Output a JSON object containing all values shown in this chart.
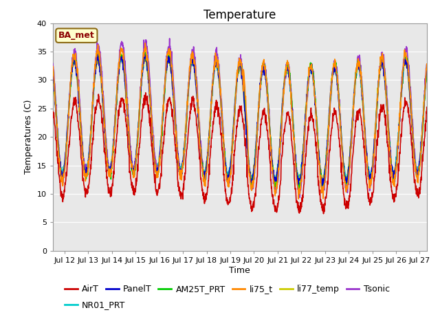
{
  "title": "Temperature",
  "xlabel": "Time",
  "ylabel": "Temperatures (C)",
  "annotation": "BA_met",
  "ylim": [
    0,
    40
  ],
  "xlim_days": [
    11.5,
    27.3
  ],
  "yticks": [
    0,
    5,
    10,
    15,
    20,
    25,
    30,
    35,
    40
  ],
  "xtick_positions": [
    12,
    13,
    14,
    15,
    16,
    17,
    18,
    19,
    20,
    21,
    22,
    23,
    24,
    25,
    26,
    27
  ],
  "xtick_labels": [
    "Jul 12",
    "Jul 13",
    "Jul 14",
    "Jul 15",
    "Jul 16",
    "Jul 17",
    "Jul 18",
    "Jul 19",
    "Jul 20",
    "Jul 21",
    "Jul 22",
    "Jul 23",
    "Jul 24",
    "Jul 25",
    "Jul 26",
    "Jul 27"
  ],
  "first_xtick_label": "Jul",
  "series": {
    "AirT": {
      "color": "#cc0000",
      "lw": 1.2,
      "zorder": 7
    },
    "PanelT": {
      "color": "#0000cc",
      "lw": 1.2,
      "zorder": 6
    },
    "AM25T_PRT": {
      "color": "#00cc00",
      "lw": 1.2,
      "zorder": 5
    },
    "li75_t": {
      "color": "#ff8800",
      "lw": 1.2,
      "zorder": 8
    },
    "li77_temp": {
      "color": "#cccc00",
      "lw": 1.2,
      "zorder": 4
    },
    "Tsonic": {
      "color": "#9933cc",
      "lw": 1.2,
      "zorder": 3
    },
    "NR01_PRT": {
      "color": "#00cccc",
      "lw": 1.2,
      "zorder": 2
    }
  },
  "plot_background": "#e8e8e8",
  "fig_background": "#ffffff",
  "grid_color": "#ffffff",
  "title_fontsize": 12,
  "axis_fontsize": 9,
  "tick_fontsize": 8,
  "legend_fontsize": 9,
  "legend_row1": [
    "AirT",
    "PanelT",
    "AM25T_PRT",
    "li75_t",
    "li77_temp",
    "Tsonic"
  ],
  "legend_row2": [
    "NR01_PRT"
  ]
}
